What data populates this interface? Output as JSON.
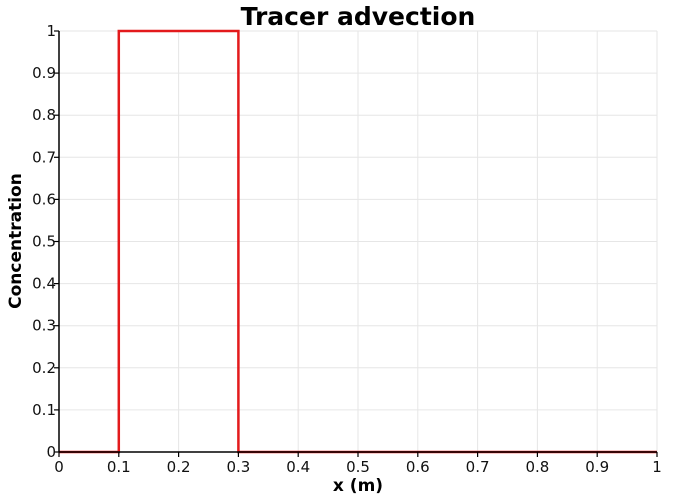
{
  "chart_data": {
    "type": "line",
    "title": "Tracer advection",
    "xlabel": "x (m)",
    "ylabel": "Concentration",
    "xlim": [
      0,
      1
    ],
    "ylim": [
      0,
      1
    ],
    "grid": true,
    "legend": "none",
    "x_ticks": [
      "0",
      "0.1",
      "0.2",
      "0.3",
      "0.4",
      "0.5",
      "0.6",
      "0.7",
      "0.8",
      "0.9",
      "1"
    ],
    "y_ticks": [
      "0",
      "0.1",
      "0.2",
      "0.3",
      "0.4",
      "0.5",
      "0.6",
      "0.7",
      "0.8",
      "0.9",
      "1"
    ],
    "series": [
      {
        "color": "#e31a1c",
        "x": [
          0,
          0.1,
          0.1,
          0.3,
          0.3,
          1
        ],
        "y": [
          0,
          0,
          1,
          1,
          0,
          0
        ]
      }
    ]
  }
}
